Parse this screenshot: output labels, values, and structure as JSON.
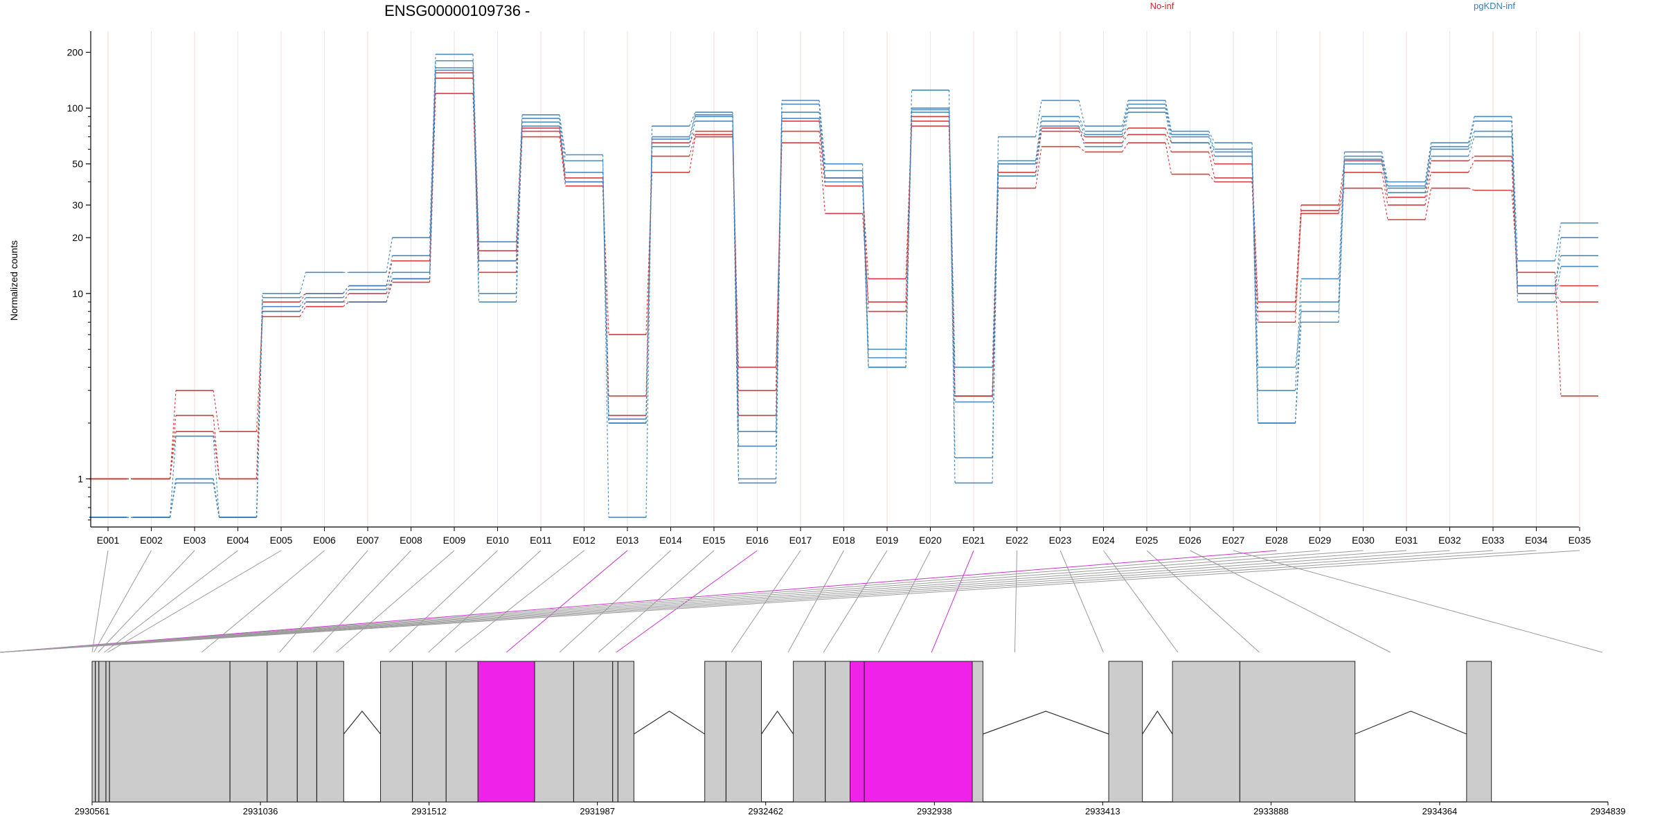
{
  "chart_data": {
    "type": "line",
    "title": "ENSG00000109736 -",
    "xlabel": "",
    "ylabel": "Normalized counts",
    "y_scale": "log",
    "ylim": [
      0.55,
      260
    ],
    "y_ticks": [
      1,
      10,
      20,
      30,
      50,
      100,
      200
    ],
    "y_tick_labels": [
      "1",
      "10",
      "20",
      "30",
      "50",
      "100",
      "200"
    ],
    "grid": "vertical-lines",
    "legend": [
      {
        "name": "No-inf",
        "color": "#d62728",
        "placement": "top-center-right"
      },
      {
        "name": "pgKDN-inf",
        "color": "#377eb8",
        "placement": "top-right"
      }
    ],
    "categories": [
      "E001",
      "E002",
      "E003",
      "E004",
      "E005",
      "E006",
      "E007",
      "E008",
      "E009",
      "E010",
      "E011",
      "E012",
      "E013",
      "E014",
      "E015",
      "E016",
      "E017",
      "E018",
      "E019",
      "E020",
      "E021",
      "E022",
      "E023",
      "E024",
      "E025",
      "E026",
      "E027",
      "E028",
      "E029",
      "E030",
      "E031",
      "E032",
      "E033",
      "E034",
      "E035"
    ],
    "series": [
      {
        "group": "No-inf",
        "color": "#d62728",
        "values": [
          1.0,
          1.0,
          3.0,
          1.8,
          7.5,
          8.5,
          9.0,
          11.5,
          120,
          13.0,
          70,
          38,
          6.0,
          45,
          70,
          4.0,
          65,
          27,
          9.0,
          80,
          2.8,
          37,
          62,
          58,
          65,
          44,
          40,
          7.0,
          27,
          37,
          25,
          37,
          36,
          13,
          2.8
        ]
      },
      {
        "group": "No-inf",
        "color": "#d62728",
        "values": [
          1.0,
          1.0,
          2.2,
          1.0,
          8.0,
          9.0,
          10.0,
          12.0,
          145,
          15.0,
          75,
          40,
          2.8,
          55,
          72,
          2.2,
          75,
          38,
          12.0,
          85,
          2.8,
          45,
          75,
          65,
          72,
          58,
          42,
          8.0,
          28,
          45,
          30,
          45,
          52,
          10,
          9.0
        ]
      },
      {
        "group": "No-inf",
        "color": "#d62728",
        "values": [
          1.0,
          1.0,
          1.8,
          1.0,
          9.0,
          10.0,
          11.0,
          15.0,
          155,
          17.0,
          78,
          42,
          2.2,
          65,
          75,
          3.0,
          85,
          42,
          8.0,
          90,
          2.8,
          50,
          78,
          70,
          78,
          65,
          50,
          9.0,
          30,
          52,
          33,
          52,
          55,
          11,
          11.0
        ]
      },
      {
        "group": "pgKDN-inf",
        "color": "#377eb8",
        "values": [
          0.62,
          0.62,
          1.0,
          0.62,
          10.0,
          13.0,
          13.0,
          20.0,
          195,
          19.0,
          92,
          56,
          0.62,
          80,
          95,
          1.0,
          110,
          50,
          4.0,
          125,
          0.95,
          70,
          110,
          80,
          110,
          75,
          65,
          3.0,
          12.0,
          58,
          40,
          65,
          90,
          15,
          24.0
        ]
      },
      {
        "group": "pgKDN-inf",
        "color": "#377eb8",
        "values": [
          0.62,
          0.62,
          1.0,
          0.62,
          9.5,
          10.0,
          11.0,
          16.0,
          180,
          10.0,
          88,
          52,
          2.0,
          70,
          92,
          1.5,
          105,
          46,
          4.5,
          100,
          2.6,
          52,
          90,
          75,
          105,
          72,
          60,
          2.0,
          9.0,
          55,
          38,
          62,
          85,
          10,
          20.0
        ]
      },
      {
        "group": "pgKDN-inf",
        "color": "#377eb8",
        "values": [
          0.62,
          0.62,
          1.7,
          0.62,
          8.5,
          9.5,
          10.5,
          13.0,
          165,
          15.0,
          84,
          45,
          2.1,
          68,
          90,
          1.8,
          95,
          42,
          5.0,
          98,
          4.0,
          50,
          85,
          72,
          100,
          70,
          58,
          4.0,
          8.0,
          53,
          37,
          60,
          75,
          11,
          16.0
        ]
      },
      {
        "group": "pgKDN-inf",
        "color": "#377eb8",
        "values": [
          0.62,
          0.62,
          0.95,
          0.62,
          8.0,
          9.0,
          9.0,
          12.0,
          160,
          9.0,
          80,
          40,
          2.0,
          62,
          85,
          0.95,
          88,
          40,
          4.0,
          95,
          1.3,
          43,
          80,
          62,
          95,
          65,
          55,
          2.0,
          7.0,
          50,
          35,
          55,
          70,
          9,
          14.0
        ]
      }
    ],
    "gene_model": {
      "coordinate_ticks": [
        "2930561",
        "2931036",
        "2931512",
        "2931987",
        "2932462",
        "2932938",
        "2933413",
        "2933888",
        "2934364",
        "2934839"
      ],
      "coordinate_range": [
        2930561,
        2934839
      ],
      "highlight_color": "#ee22e8",
      "exon_color": "#cccccc",
      "highlighted_bins": [
        "E013",
        "E016",
        "E021",
        "E028"
      ],
      "blocks": [
        {
          "start": 2930561,
          "end": 2931271,
          "boundaries": [
            2930570,
            2930580,
            2930600,
            2930610,
            2930950,
            2931055,
            2931140,
            2931195
          ],
          "highlight": false
        },
        {
          "start": 2931375,
          "end": 2931650,
          "boundaries": [
            2931465,
            2931560
          ],
          "highlight": false
        },
        {
          "start": 2931650,
          "end": 2931810,
          "boundaries": [],
          "highlight": true
        },
        {
          "start": 2931810,
          "end": 2932090,
          "boundaries": [
            2931920,
            2932030,
            2932045
          ],
          "highlight": false
        },
        {
          "start": 2932290,
          "end": 2932450,
          "boundaries": [
            2932350
          ],
          "highlight": false
        },
        {
          "start": 2932540,
          "end": 2932700,
          "boundaries": [
            2932630
          ],
          "highlight": false
        },
        {
          "start": 2932700,
          "end": 2933045,
          "boundaries": [
            2932740
          ],
          "highlight": true
        },
        {
          "start": 2933045,
          "end": 2933075,
          "boundaries": [],
          "highlight": false
        },
        {
          "start": 2933430,
          "end": 2933525,
          "boundaries": [],
          "highlight": false
        },
        {
          "start": 2933610,
          "end": 2934125,
          "boundaries": [
            2933800
          ],
          "highlight": false
        },
        {
          "start": 2934440,
          "end": 2934510,
          "boundaries": [],
          "highlight": false
        }
      ],
      "introns": [
        [
          2931271,
          2931375
        ],
        [
          2932090,
          2932290
        ],
        [
          2932450,
          2932540
        ],
        [
          2933075,
          2933430
        ],
        [
          2933525,
          2933610
        ],
        [
          2934125,
          2934440
        ]
      ],
      "bin_anchors": [
        2930561,
        2930566,
        2930578,
        2930595,
        2930605,
        2930870,
        2931090,
        2931185,
        2931250,
        2931400,
        2931510,
        2931585,
        2931730,
        2931880,
        2931990,
        2932040,
        2932365,
        2932525,
        2932625,
        2932780,
        2932930,
        2933165,
        2933415,
        2933625,
        2933855,
        2934225,
        2934823
      ],
      "bin_anchor_map": [
        0,
        0,
        1,
        2,
        3,
        4,
        5,
        6,
        7,
        8,
        9,
        10,
        11,
        12,
        13,
        14,
        15,
        16,
        17,
        18,
        19,
        20,
        21,
        22,
        23,
        24,
        25,
        26
      ],
      "bin_links": [
        0,
        1,
        2,
        3,
        4,
        5,
        6,
        7,
        8,
        9,
        10,
        11,
        12,
        13,
        14,
        15,
        16,
        17,
        18,
        19,
        20,
        21,
        22,
        23,
        24,
        25,
        26,
        27,
        27,
        28,
        28,
        29,
        30,
        31,
        32
      ]
    }
  }
}
